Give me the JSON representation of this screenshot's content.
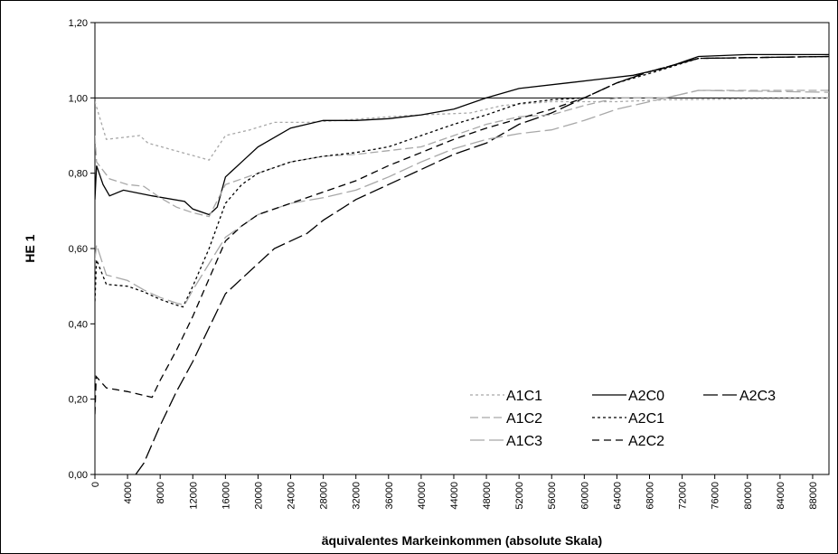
{
  "chart_data": {
    "type": "line",
    "xlabel": "äquivalentes Markeinkommen (absolute Skala)",
    "ylabel": "HE 1",
    "xlim": [
      0,
      90000
    ],
    "ylim": [
      0,
      1.2
    ],
    "x_ticks": [
      0,
      4000,
      8000,
      12000,
      16000,
      20000,
      24000,
      28000,
      32000,
      36000,
      40000,
      44000,
      48000,
      52000,
      56000,
      60000,
      64000,
      68000,
      72000,
      76000,
      80000,
      84000,
      88000
    ],
    "x_tick_labels": [
      "0",
      "4000",
      "8000",
      "12000",
      "16000",
      "20000",
      "24000",
      "28000",
      "32000",
      "36000",
      "40000",
      "44000",
      "48000",
      "52000",
      "56000",
      "60000",
      "64000",
      "68000",
      "72000",
      "76000",
      "80000",
      "84000",
      "88000"
    ],
    "y_ticks": [
      0,
      0.2,
      0.4,
      0.6,
      0.8,
      1.0,
      1.2
    ],
    "y_tick_labels": [
      "0,00",
      "0,20",
      "0,40",
      "0,60",
      "0,80",
      "1,00",
      "1,20"
    ],
    "reference_line": 1.0,
    "grid": false,
    "legend_position": "bottom-right",
    "series": [
      {
        "name": "A1C1",
        "color": "#a8a8a8",
        "dash": "3,3",
        "points": [
          [
            0,
            0.99
          ],
          [
            1400,
            0.89
          ],
          [
            5500,
            0.9
          ],
          [
            6500,
            0.88
          ],
          [
            14000,
            0.835
          ],
          [
            16000,
            0.9
          ],
          [
            17000,
            0.905
          ],
          [
            19000,
            0.915
          ],
          [
            22000,
            0.935
          ],
          [
            26000,
            0.935
          ],
          [
            30000,
            0.94
          ],
          [
            36000,
            0.95
          ],
          [
            40000,
            0.955
          ],
          [
            46000,
            0.96
          ],
          [
            50000,
            0.98
          ],
          [
            56000,
            0.99
          ],
          [
            64000,
            0.99
          ],
          [
            70000,
            0.995
          ],
          [
            90000,
            1.0
          ]
        ]
      },
      {
        "name": "A2C0",
        "color": "#000000",
        "dash": "",
        "points": [
          [
            0,
            0.73
          ],
          [
            200,
            0.82
          ],
          [
            1000,
            0.77
          ],
          [
            1800,
            0.74
          ],
          [
            3500,
            0.755
          ],
          [
            7000,
            0.74
          ],
          [
            11000,
            0.725
          ],
          [
            12000,
            0.705
          ],
          [
            14000,
            0.69
          ],
          [
            15000,
            0.71
          ],
          [
            16000,
            0.79
          ],
          [
            18000,
            0.83
          ],
          [
            20000,
            0.87
          ],
          [
            24000,
            0.92
          ],
          [
            28000,
            0.94
          ],
          [
            32000,
            0.94
          ],
          [
            36000,
            0.945
          ],
          [
            40000,
            0.955
          ],
          [
            44000,
            0.97
          ],
          [
            48000,
            1.0
          ],
          [
            52000,
            1.025
          ],
          [
            58000,
            1.04
          ],
          [
            62000,
            1.05
          ],
          [
            66000,
            1.06
          ],
          [
            70000,
            1.08
          ],
          [
            74000,
            1.11
          ],
          [
            80000,
            1.115
          ],
          [
            90000,
            1.115
          ]
        ]
      },
      {
        "name": "A2C3",
        "color": "#000000",
        "dash": "16,5",
        "points": [
          [
            5000,
            0.0
          ],
          [
            6000,
            0.03
          ],
          [
            8000,
            0.13
          ],
          [
            10000,
            0.22
          ],
          [
            12000,
            0.3
          ],
          [
            14000,
            0.39
          ],
          [
            16000,
            0.48
          ],
          [
            18000,
            0.52
          ],
          [
            20000,
            0.56
          ],
          [
            22000,
            0.6
          ],
          [
            26000,
            0.64
          ],
          [
            28000,
            0.675
          ],
          [
            32000,
            0.73
          ],
          [
            36000,
            0.77
          ],
          [
            40000,
            0.81
          ],
          [
            44000,
            0.85
          ],
          [
            48000,
            0.88
          ],
          [
            52000,
            0.93
          ],
          [
            56000,
            0.96
          ],
          [
            60000,
            1.0
          ],
          [
            64000,
            1.04
          ],
          [
            68000,
            1.07
          ],
          [
            74000,
            1.105
          ],
          [
            90000,
            1.11
          ]
        ]
      },
      {
        "name": "A1C2",
        "color": "#a8a8a8",
        "dash": "9,4",
        "points": [
          [
            0,
            0.9
          ],
          [
            200,
            0.83
          ],
          [
            1800,
            0.785
          ],
          [
            4000,
            0.77
          ],
          [
            6000,
            0.765
          ],
          [
            8000,
            0.735
          ],
          [
            10000,
            0.71
          ],
          [
            12000,
            0.695
          ],
          [
            14000,
            0.685
          ],
          [
            16000,
            0.77
          ],
          [
            20000,
            0.8
          ],
          [
            24000,
            0.83
          ],
          [
            28000,
            0.845
          ],
          [
            32000,
            0.85
          ],
          [
            36000,
            0.86
          ],
          [
            40000,
            0.87
          ],
          [
            44000,
            0.9
          ],
          [
            48000,
            0.93
          ],
          [
            52000,
            0.95
          ],
          [
            56000,
            0.955
          ],
          [
            60000,
            0.98
          ],
          [
            64000,
            1.0
          ],
          [
            70000,
            1.0
          ],
          [
            74000,
            1.02
          ],
          [
            90000,
            1.02
          ]
        ]
      },
      {
        "name": "A2C1",
        "color": "#000000",
        "dash": "3,3",
        "points": [
          [
            0,
            0.46
          ],
          [
            200,
            0.57
          ],
          [
            1400,
            0.505
          ],
          [
            4000,
            0.5
          ],
          [
            6000,
            0.485
          ],
          [
            8000,
            0.465
          ],
          [
            10000,
            0.45
          ],
          [
            10800,
            0.445
          ],
          [
            12000,
            0.5
          ],
          [
            14000,
            0.6
          ],
          [
            16000,
            0.72
          ],
          [
            18000,
            0.77
          ],
          [
            20000,
            0.8
          ],
          [
            24000,
            0.83
          ],
          [
            28000,
            0.845
          ],
          [
            32000,
            0.855
          ],
          [
            36000,
            0.87
          ],
          [
            40000,
            0.9
          ],
          [
            44000,
            0.93
          ],
          [
            48000,
            0.955
          ],
          [
            52000,
            0.985
          ],
          [
            56000,
            0.995
          ],
          [
            60000,
            1.0
          ],
          [
            64000,
            1.04
          ],
          [
            68000,
            1.065
          ],
          [
            74000,
            1.105
          ],
          [
            90000,
            1.11
          ]
        ]
      },
      {
        "name": "A1C3",
        "color": "#a8a8a8",
        "dash": "16,5",
        "points": [
          [
            0,
            0.57
          ],
          [
            200,
            0.61
          ],
          [
            1400,
            0.53
          ],
          [
            4000,
            0.515
          ],
          [
            6000,
            0.49
          ],
          [
            8000,
            0.47
          ],
          [
            10000,
            0.455
          ],
          [
            11000,
            0.45
          ],
          [
            12000,
            0.49
          ],
          [
            14000,
            0.56
          ],
          [
            16000,
            0.63
          ],
          [
            18000,
            0.66
          ],
          [
            20000,
            0.69
          ],
          [
            24000,
            0.72
          ],
          [
            28000,
            0.735
          ],
          [
            32000,
            0.755
          ],
          [
            36000,
            0.79
          ],
          [
            40000,
            0.83
          ],
          [
            44000,
            0.865
          ],
          [
            48000,
            0.89
          ],
          [
            52000,
            0.905
          ],
          [
            56000,
            0.915
          ],
          [
            60000,
            0.94
          ],
          [
            64000,
            0.97
          ],
          [
            68000,
            0.99
          ],
          [
            74000,
            1.02
          ],
          [
            90000,
            1.015
          ]
        ]
      },
      {
        "name": "A2C2",
        "color": "#000000",
        "dash": "8,5",
        "points": [
          [
            0,
            0.16
          ],
          [
            150,
            0.26
          ],
          [
            1400,
            0.23
          ],
          [
            4000,
            0.22
          ],
          [
            7000,
            0.205
          ],
          [
            8000,
            0.25
          ],
          [
            10000,
            0.33
          ],
          [
            12000,
            0.42
          ],
          [
            14000,
            0.52
          ],
          [
            16000,
            0.62
          ],
          [
            18000,
            0.66
          ],
          [
            20000,
            0.69
          ],
          [
            24000,
            0.72
          ],
          [
            28000,
            0.75
          ],
          [
            32000,
            0.78
          ],
          [
            36000,
            0.82
          ],
          [
            40000,
            0.855
          ],
          [
            44000,
            0.89
          ],
          [
            48000,
            0.92
          ],
          [
            52000,
            0.945
          ],
          [
            56000,
            0.97
          ],
          [
            60000,
            1.0
          ],
          [
            64000,
            1.04
          ],
          [
            68000,
            1.07
          ],
          [
            74000,
            1.105
          ],
          [
            90000,
            1.11
          ]
        ]
      }
    ]
  }
}
